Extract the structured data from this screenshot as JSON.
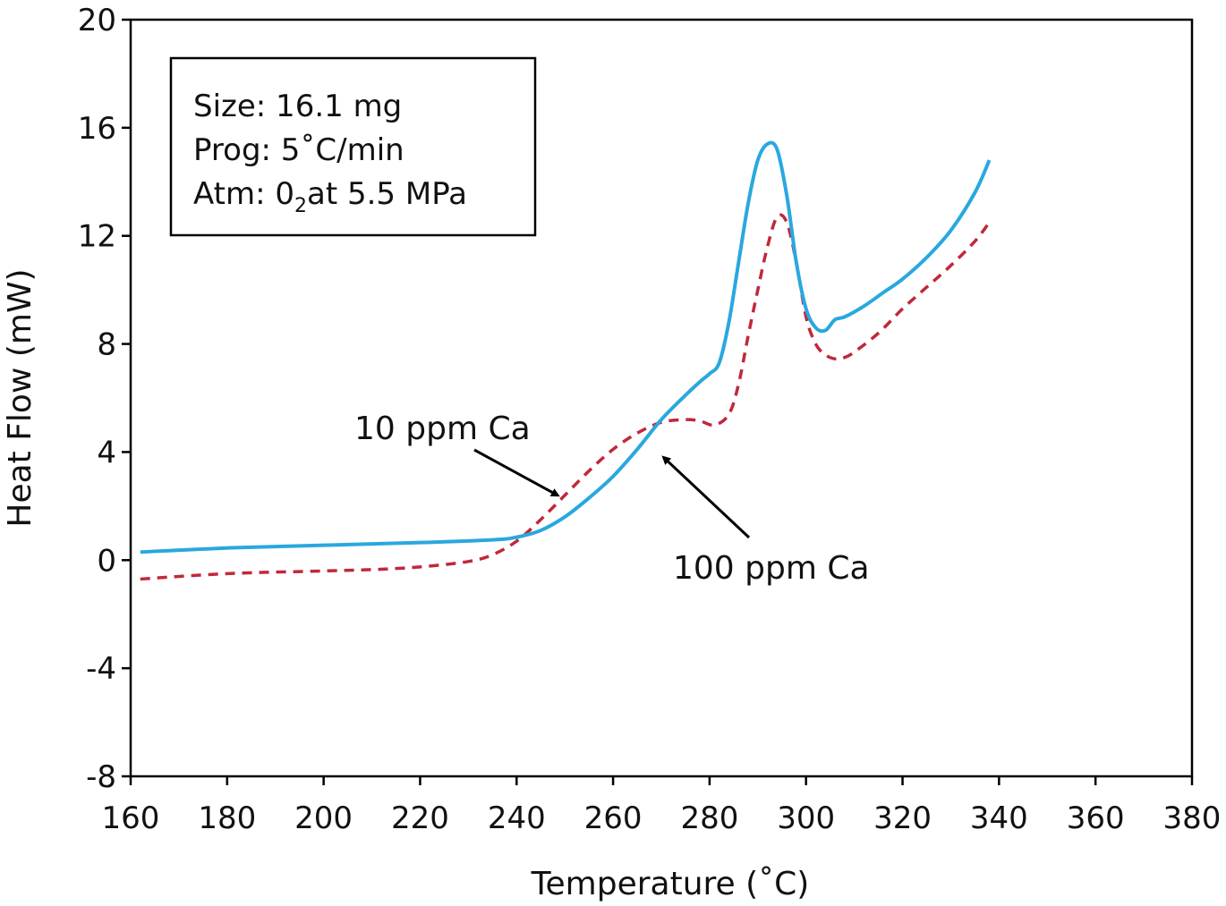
{
  "chart_data": {
    "type": "line",
    "xlabel": "Temperature (˚C)",
    "ylabel": "Heat Flow (mW)",
    "xlim": [
      160,
      380
    ],
    "ylim": [
      -8,
      20
    ],
    "xticks": [
      160,
      180,
      200,
      220,
      240,
      260,
      280,
      300,
      320,
      340,
      360,
      380
    ],
    "yticks": [
      -8,
      -4,
      0,
      4,
      8,
      12,
      16,
      20
    ],
    "grid": false,
    "info_box": {
      "line1": "Size: 16.1 mg",
      "line2": "Prog: 5˚C/min",
      "line3_prefix": "Atm: 0",
      "line3_sub": "2",
      "line3_suffix": "at 5.5 MPa"
    },
    "series": [
      {
        "name": "10 ppm Ca",
        "color": "#c0283a",
        "style": "dashed",
        "x": [
          162,
          180,
          200,
          210,
          220,
          230,
          235,
          240,
          245,
          250,
          255,
          260,
          265,
          270,
          275,
          278,
          281,
          284,
          286,
          288,
          290,
          292,
          294,
          296,
          298,
          300,
          302,
          304,
          306,
          308,
          310,
          315,
          320,
          325,
          330,
          335,
          338
        ],
        "y": [
          -0.7,
          -0.5,
          -0.4,
          -0.35,
          -0.25,
          -0.05,
          0.2,
          0.7,
          1.5,
          2.4,
          3.3,
          4.1,
          4.7,
          5.1,
          5.2,
          5.15,
          5.0,
          5.4,
          6.5,
          8.3,
          10.0,
          11.6,
          12.7,
          12.5,
          11.0,
          9.0,
          8.0,
          7.6,
          7.45,
          7.5,
          7.7,
          8.4,
          9.3,
          10.1,
          10.9,
          11.8,
          12.5
        ]
      },
      {
        "name": "100 ppm Ca",
        "color": "#29a8df",
        "style": "solid",
        "x": [
          162,
          180,
          200,
          220,
          235,
          240,
          245,
          250,
          255,
          260,
          265,
          270,
          275,
          278,
          280,
          282,
          284,
          286,
          288,
          290,
          292,
          294,
          296,
          298,
          300,
          302,
          304,
          306,
          308,
          312,
          316,
          320,
          325,
          330,
          335,
          338
        ],
        "y": [
          0.3,
          0.45,
          0.55,
          0.65,
          0.75,
          0.85,
          1.1,
          1.6,
          2.3,
          3.1,
          4.1,
          5.2,
          6.1,
          6.6,
          6.9,
          7.3,
          8.8,
          11.0,
          13.2,
          14.8,
          15.4,
          15.2,
          13.5,
          11.0,
          9.3,
          8.6,
          8.5,
          8.9,
          9.0,
          9.4,
          9.9,
          10.4,
          11.2,
          12.2,
          13.6,
          14.8
        ]
      }
    ],
    "annotations": [
      {
        "text": "10 ppm Ca",
        "arrow_to": [
          250,
          2.2
        ]
      },
      {
        "text": "100 ppm Ca",
        "arrow_to": [
          269,
          4.0
        ]
      }
    ]
  }
}
